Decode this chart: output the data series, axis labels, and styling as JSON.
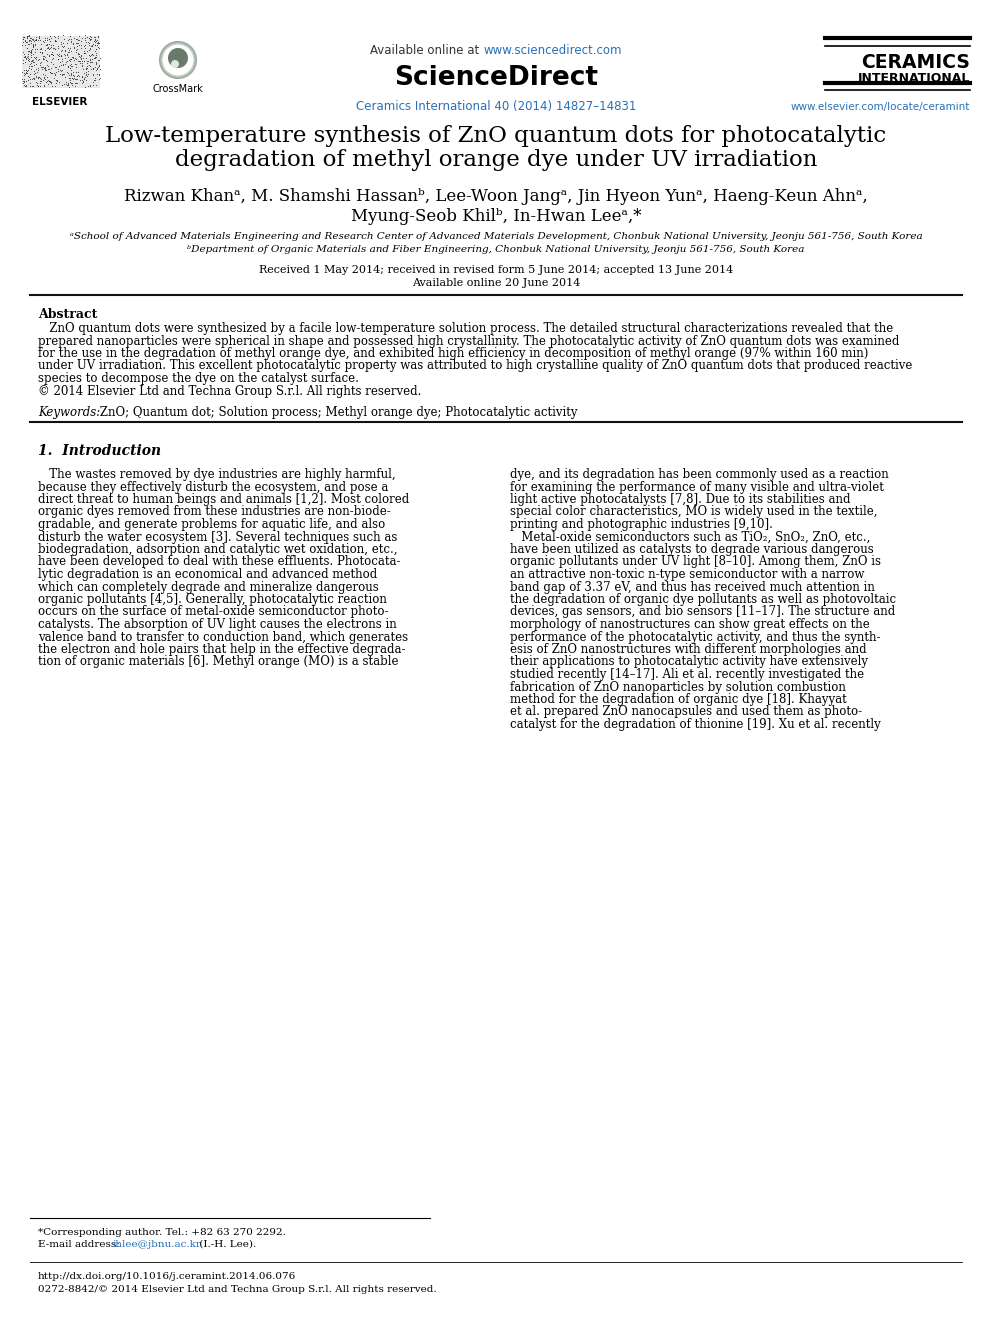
{
  "title_line1": "Low-temperature synthesis of ZnO quantum dots for photocatalytic",
  "title_line2": "degradation of methyl orange dye under UV irradiation",
  "authors_line1": "Rizwan Khanᵃ, M. Shamshi Hassanᵇ, Lee-Woon Jangᵃ, Jin Hyeon Yunᵃ, Haeng-Keun Ahnᵃ,",
  "authors_line2": "Myung-Seob Khilᵇ, In-Hwan Leeᵃ,*",
  "affil_a": "ᵃSchool of Advanced Materials Engineering and Research Center of Advanced Materials Development, Chonbuk National University, Jeonju 561-756, South Korea",
  "affil_b": "ᵇDepartment of Organic Materials and Fiber Engineering, Chonbuk National University, Jeonju 561-756, South Korea",
  "received": "Received 1 May 2014; received in revised form 5 June 2014; accepted 13 June 2014",
  "available": "Available online 20 June 2014",
  "abstract_title": "Abstract",
  "keywords_label": "Keywords:",
  "keywords_body": " ZnO; Quantum dot; Solution process; Methyl orange dye; Photocatalytic activity",
  "section1_title": "1.  Introduction",
  "header_available_pre": "Available online at ",
  "header_available_link": "www.sciencedirect.com",
  "header_journal": "Ceramics International 40 (2014) 14827–14831",
  "header_website": "www.elsevier.com/locate/ceramint",
  "ceramics_line1": "CERAMICS",
  "ceramics_line2": "INTERNATIONAL",
  "footnote_corresponding": "*Corresponding author. Tel.: +82 63 270 2292.",
  "footnote_email_pre": "E-mail address: ",
  "footnote_email_link": "ihlee@jbnu.ac.kr",
  "footnote_email_post": " (I.-H. Lee).",
  "footnote_doi": "http://dx.doi.org/10.1016/j.ceramint.2014.06.076",
  "footnote_issn": "0272-8842/© 2014 Elsevier Ltd and Techna Group S.r.l. All rights reserved.",
  "bg_color": "#ffffff",
  "text_color": "#000000",
  "link_color": "#2970b6"
}
